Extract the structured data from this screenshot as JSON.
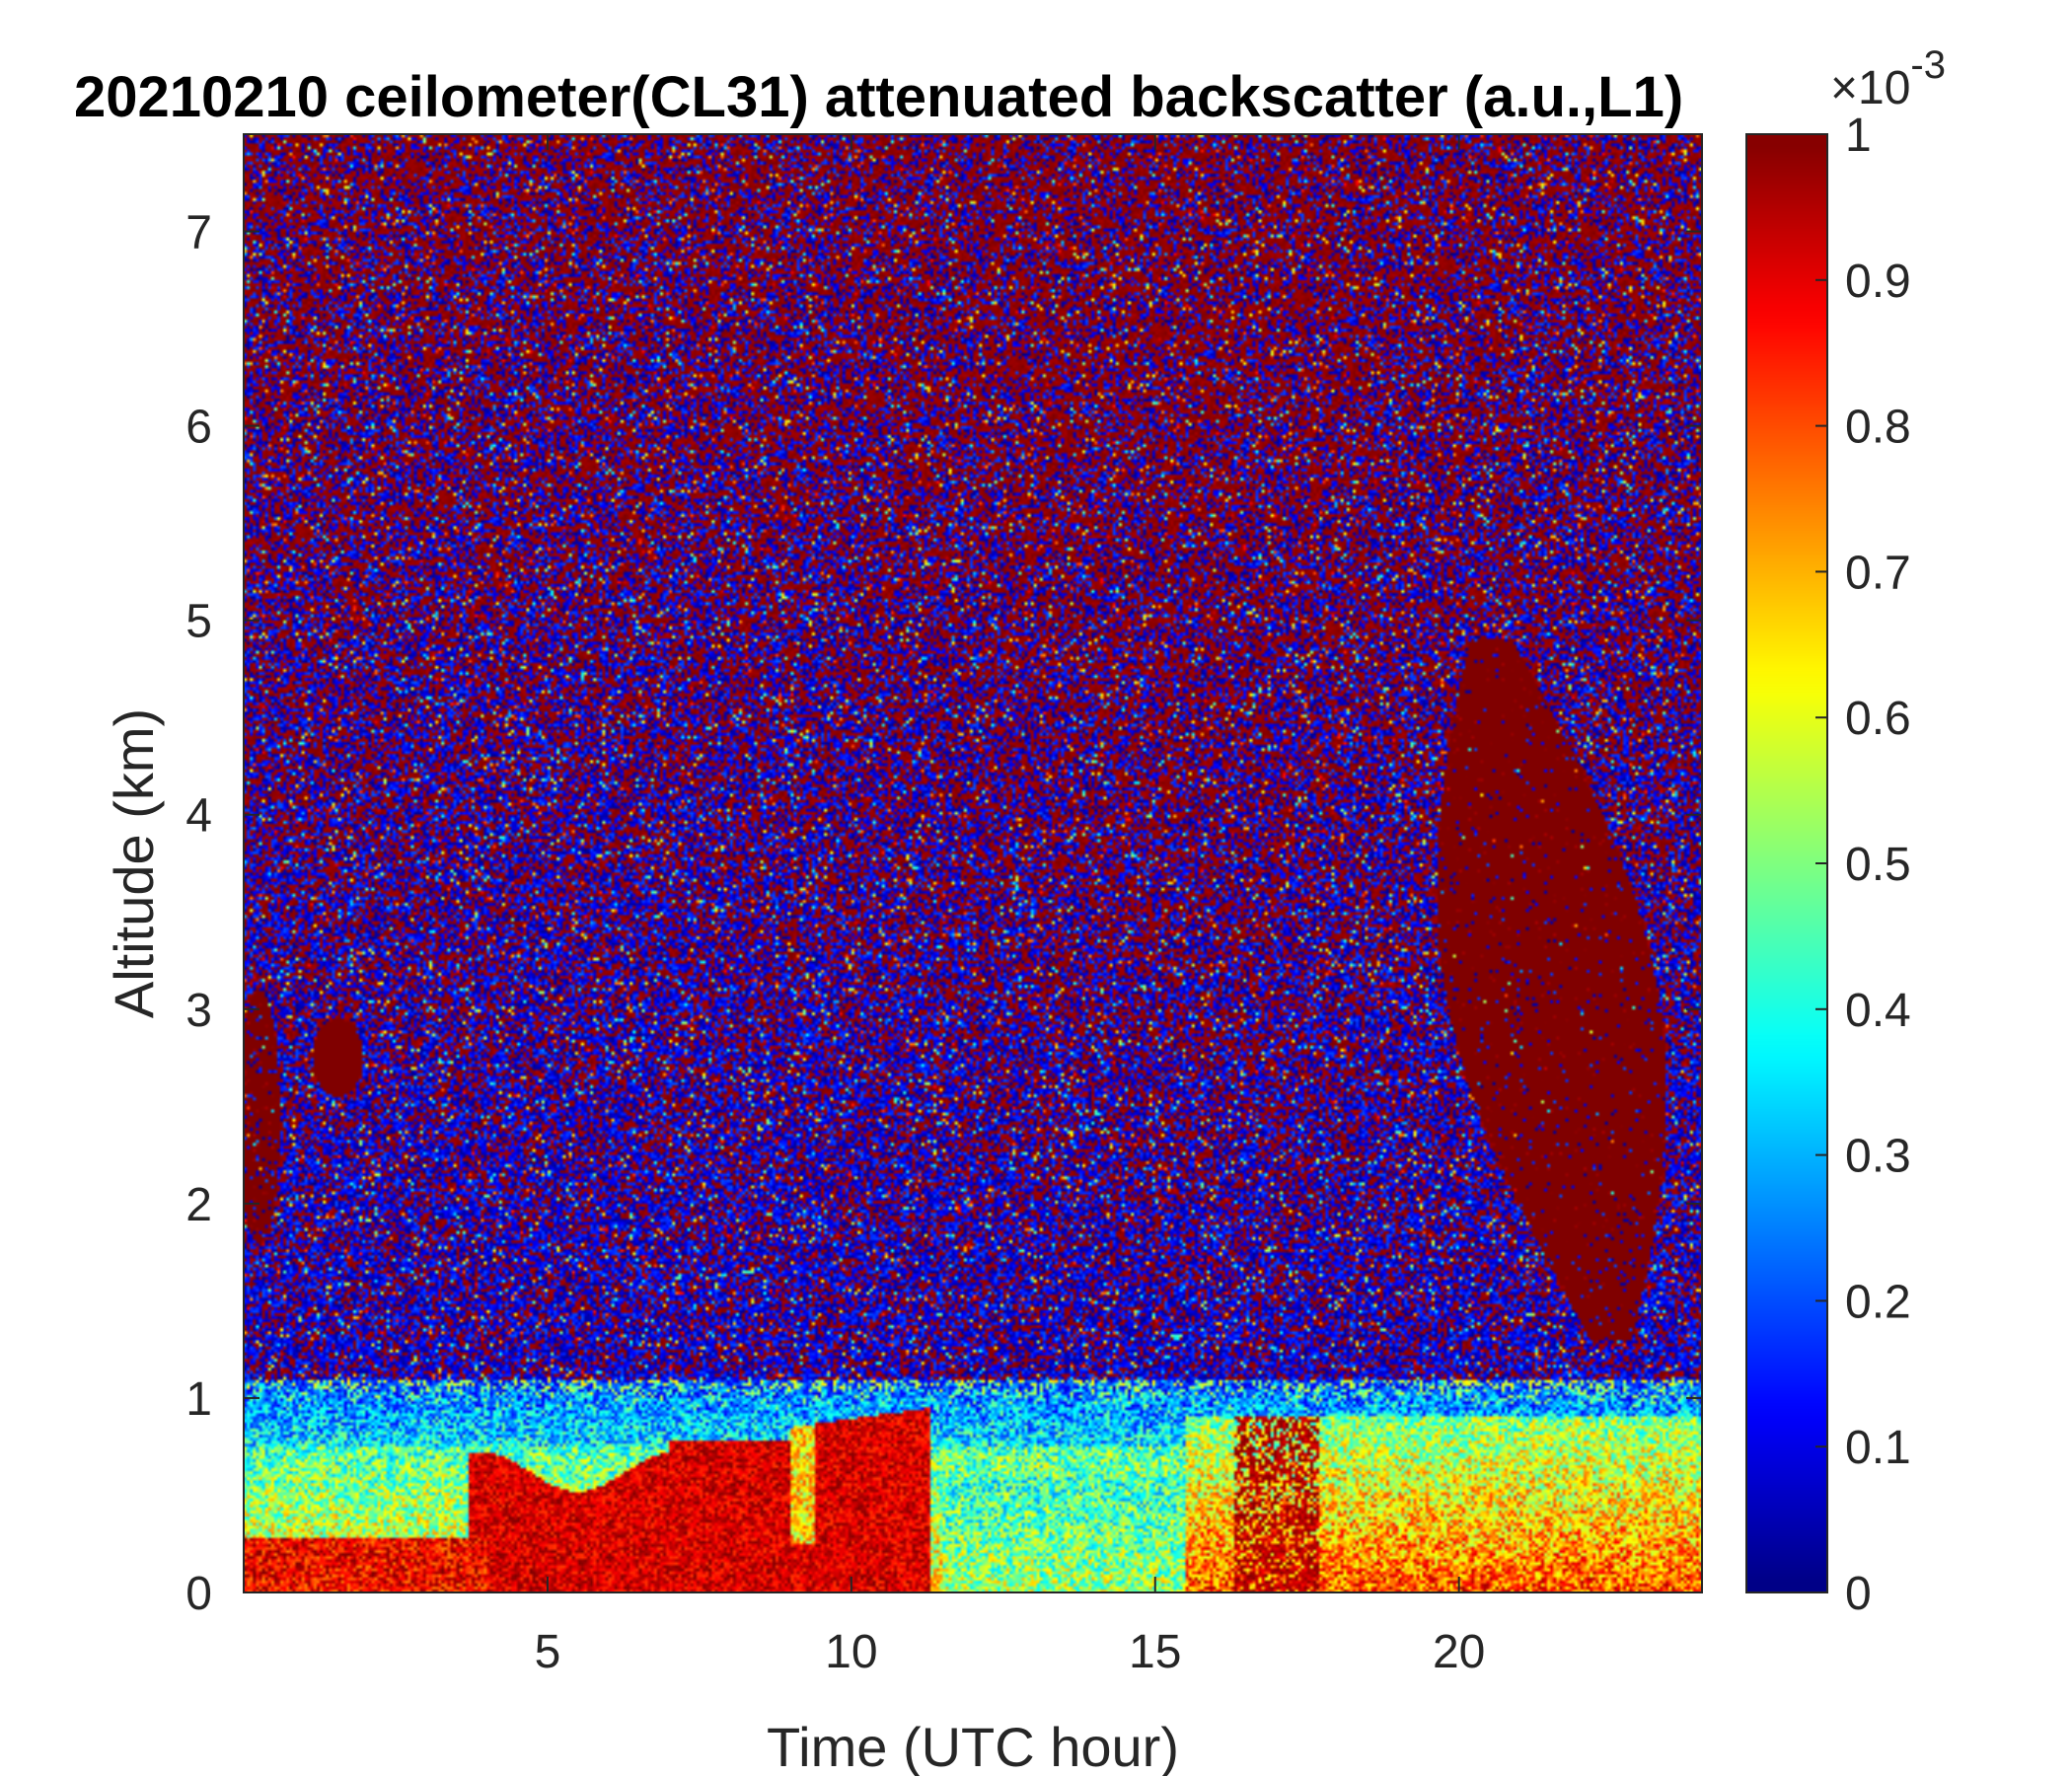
{
  "chart_data": {
    "type": "heatmap",
    "title": "20210210 ceilometer(CL31) attenuated backscatter (a.u.,L1)",
    "xlabel": "Time (UTC hour)",
    "ylabel": "Altitude (km)",
    "xlim": [
      0,
      24
    ],
    "ylim": [
      0,
      7.5
    ],
    "xticks": [
      5,
      10,
      15,
      20
    ],
    "xtick_labels": [
      "5",
      "10",
      "15",
      "20"
    ],
    "yticks": [
      0,
      1,
      2,
      3,
      4,
      5,
      6,
      7
    ],
    "ytick_labels": [
      "0",
      "1",
      "2",
      "3",
      "4",
      "5",
      "6",
      "7"
    ],
    "colorbar": {
      "colormap": "jet",
      "clim": [
        0,
        1
      ],
      "ticks": [
        0,
        0.1,
        0.2,
        0.3,
        0.4,
        0.5,
        0.6,
        0.7,
        0.8,
        0.9,
        1
      ],
      "tick_labels": [
        "0",
        "0.1",
        "0.2",
        "0.3",
        "0.4",
        "0.5",
        "0.6",
        "0.7",
        "0.8",
        "0.9",
        "1"
      ],
      "multiplier_base": "×10",
      "multiplier_exponent": "-3"
    },
    "colors": {
      "low": "#00008f",
      "high": "#800000",
      "axis": "#262626"
    },
    "grid": false,
    "features": [
      {
        "kind": "background noise",
        "x": [
          0,
          24
        ],
        "y": [
          1.2,
          7.5
        ],
        "level": "mixed 0-1 noise, mean rising with altitude"
      },
      {
        "kind": "boundary layer",
        "x": [
          0,
          24
        ],
        "y": [
          0,
          1.1
        ],
        "level": 0.5
      },
      {
        "kind": "aerosol layer",
        "x": [
          3.7,
          11.3
        ],
        "y": [
          0,
          1.0
        ],
        "level": 0.95
      },
      {
        "kind": "cloud",
        "x": [
          19.5,
          24
        ],
        "y": [
          1.3,
          4.9
        ],
        "level": 1
      },
      {
        "kind": "cloud",
        "x": [
          1.1,
          2.0
        ],
        "y": [
          2.55,
          2.95
        ],
        "level": 1
      },
      {
        "kind": "cloud",
        "x": [
          0,
          0.6
        ],
        "y": [
          1.8,
          3.1
        ],
        "level": 1
      }
    ]
  }
}
